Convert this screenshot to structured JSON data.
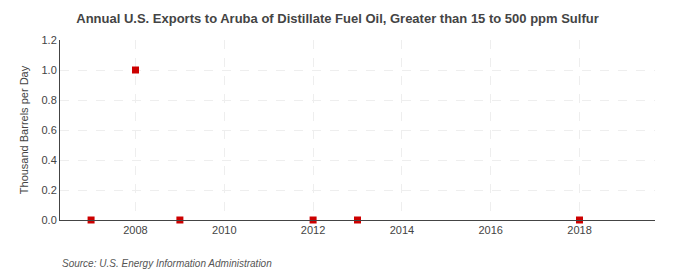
{
  "chart_data": {
    "type": "scatter",
    "title": "Annual U.S. Exports to Aruba of Distillate Fuel Oil, Greater than 15 to 500 ppm Sulfur",
    "ylabel": "Thousand Barrels per Day",
    "source": "Source: U.S. Energy Information Administration",
    "x": [
      2007,
      2008,
      2009,
      2012,
      2013,
      2018
    ],
    "values": [
      0.0,
      1.0,
      0.0,
      0.0,
      0.0,
      0.0
    ],
    "color": "#cc0000",
    "marker": "square",
    "xlim": [
      2006.3,
      2019.7
    ],
    "xticks": [
      2008,
      2010,
      2012,
      2014,
      2016,
      2018
    ],
    "ylim": [
      0,
      1.2
    ],
    "yticks": [
      {
        "value": 0.0,
        "label": "0.0"
      },
      {
        "value": 0.2,
        "label": "0.2"
      },
      {
        "value": 0.4,
        "label": "0.4"
      },
      {
        "value": 0.6,
        "label": "0.6"
      },
      {
        "value": 0.8,
        "label": "0.8"
      },
      {
        "value": 1.0,
        "label": "1.0"
      },
      {
        "value": 1.2,
        "label": "1.2"
      }
    ],
    "grid": true
  }
}
